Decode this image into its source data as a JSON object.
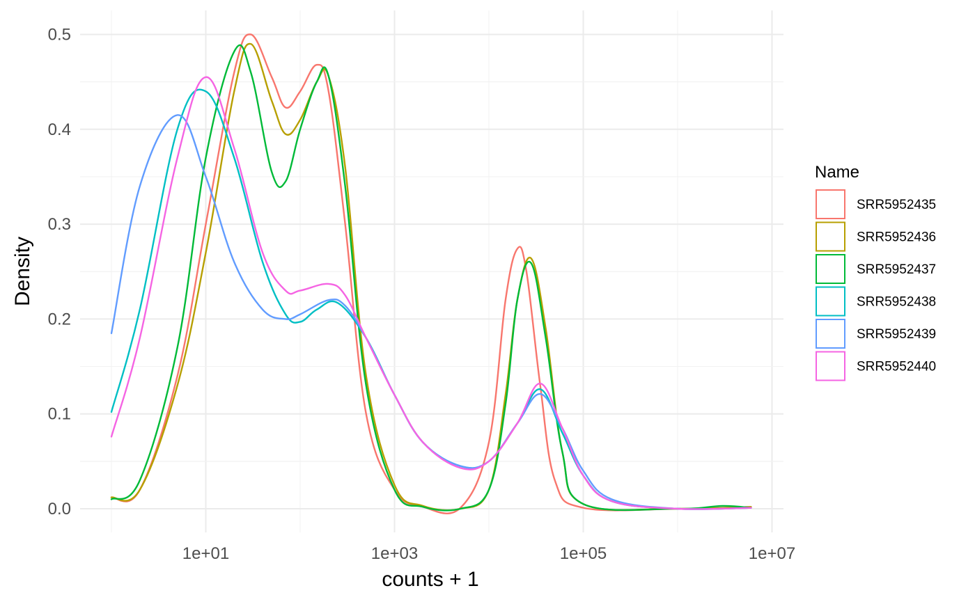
{
  "chart_data": {
    "type": "line",
    "title": "",
    "xlabel": "counts + 1",
    "ylabel": "Density",
    "x_scale": "log10",
    "xlim": [
      1,
      6000000
    ],
    "ylim": [
      0,
      0.5
    ],
    "x_ticks": [
      10,
      1000,
      100000,
      10000000
    ],
    "x_tick_labels": [
      "1e+01",
      "1e+03",
      "1e+05",
      "1e+07"
    ],
    "y_ticks": [
      0.0,
      0.1,
      0.2,
      0.3,
      0.4,
      0.5
    ],
    "y_tick_labels": [
      "0.0",
      "0.1",
      "0.2",
      "0.3",
      "0.4",
      "0.5"
    ],
    "grid": true,
    "legend": {
      "title": "Name",
      "position": "right"
    },
    "series": [
      {
        "name": "SRR5952435",
        "color": "#F8766D",
        "x": [
          1,
          2,
          5,
          10,
          20,
          30,
          50,
          70,
          100,
          150,
          200,
          300,
          500,
          1000,
          2000,
          5000,
          10000,
          15000,
          20000,
          25000,
          35000,
          50000,
          100000,
          1000000,
          6000000
        ],
        "y": [
          0.012,
          0.02,
          0.14,
          0.3,
          0.46,
          0.5,
          0.455,
          0.423,
          0.44,
          0.468,
          0.44,
          0.3,
          0.1,
          0.02,
          0.002,
          0.001,
          0.07,
          0.22,
          0.274,
          0.25,
          0.13,
          0.03,
          0.001,
          0.0,
          0.002
        ]
      },
      {
        "name": "SRR5952436",
        "color": "#B79F00",
        "x": [
          1,
          2,
          5,
          10,
          20,
          30,
          50,
          70,
          100,
          150,
          200,
          300,
          500,
          1000,
          2000,
          5000,
          10000,
          15000,
          20000,
          28000,
          40000,
          60000,
          100000,
          1000000,
          6000000
        ],
        "y": [
          0.012,
          0.02,
          0.13,
          0.27,
          0.44,
          0.49,
          0.43,
          0.395,
          0.41,
          0.45,
          0.456,
          0.36,
          0.14,
          0.025,
          0.003,
          0.0,
          0.02,
          0.12,
          0.22,
          0.264,
          0.19,
          0.06,
          0.005,
          0.0,
          0.002
        ]
      },
      {
        "name": "SRR5952437",
        "color": "#00BA38",
        "x": [
          1,
          2,
          5,
          10,
          20,
          30,
          50,
          70,
          100,
          150,
          200,
          300,
          500,
          1000,
          2000,
          5000,
          10000,
          15000,
          20000,
          28000,
          40000,
          60000,
          100000,
          1000000,
          3000000,
          6000000
        ],
        "y": [
          0.01,
          0.03,
          0.17,
          0.37,
          0.482,
          0.46,
          0.355,
          0.345,
          0.4,
          0.45,
          0.456,
          0.34,
          0.13,
          0.02,
          0.002,
          0.0,
          0.02,
          0.11,
          0.22,
          0.259,
          0.18,
          0.06,
          0.005,
          0.0,
          0.003,
          0.001
        ]
      },
      {
        "name": "SRR5952438",
        "color": "#00BFC4",
        "x": [
          1,
          2,
          5,
          10,
          20,
          40,
          70,
          100,
          150,
          250,
          500,
          1000,
          2000,
          5000,
          10000,
          20000,
          35000,
          60000,
          100000,
          200000,
          1000000,
          6000000
        ],
        "y": [
          0.102,
          0.21,
          0.4,
          0.44,
          0.37,
          0.26,
          0.205,
          0.197,
          0.21,
          0.217,
          0.18,
          0.12,
          0.07,
          0.045,
          0.05,
          0.09,
          0.126,
          0.08,
          0.035,
          0.008,
          0.0,
          0.001
        ]
      },
      {
        "name": "SRR5952439",
        "color": "#619CFF",
        "x": [
          1,
          2,
          5,
          10,
          20,
          40,
          70,
          100,
          200,
          300,
          500,
          1000,
          2000,
          5000,
          10000,
          20000,
          35000,
          60000,
          100000,
          200000,
          1000000,
          6000000
        ],
        "y": [
          0.185,
          0.34,
          0.415,
          0.35,
          0.26,
          0.21,
          0.2,
          0.205,
          0.22,
          0.214,
          0.18,
          0.12,
          0.07,
          0.045,
          0.05,
          0.09,
          0.121,
          0.085,
          0.04,
          0.01,
          0.0,
          0.001
        ]
      },
      {
        "name": "SRR5952440",
        "color": "#F564E3",
        "x": [
          1,
          2,
          5,
          10,
          20,
          40,
          70,
          100,
          200,
          300,
          500,
          1000,
          2000,
          5000,
          10000,
          20000,
          35000,
          60000,
          100000,
          200000,
          1000000,
          6000000
        ],
        "y": [
          0.076,
          0.18,
          0.37,
          0.455,
          0.38,
          0.27,
          0.23,
          0.23,
          0.237,
          0.225,
          0.18,
          0.12,
          0.07,
          0.043,
          0.05,
          0.09,
          0.132,
          0.085,
          0.035,
          0.008,
          0.0,
          0.001
        ]
      }
    ]
  }
}
